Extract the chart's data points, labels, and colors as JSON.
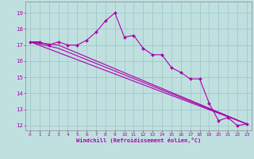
{
  "xlabel": "Windchill (Refroidissement éolien,°C)",
  "bg_color": "#c0e0e0",
  "grid_color": "#a0c8c8",
  "line_color": "#aa00aa",
  "spine_color": "#888888",
  "xlim": [
    -0.5,
    23.5
  ],
  "ylim": [
    11.7,
    19.7
  ],
  "yticks": [
    12,
    13,
    14,
    15,
    16,
    17,
    18,
    19
  ],
  "xticks": [
    0,
    1,
    2,
    3,
    4,
    5,
    6,
    7,
    8,
    9,
    10,
    11,
    12,
    13,
    14,
    15,
    16,
    17,
    18,
    19,
    20,
    21,
    22,
    23
  ],
  "series1_x": [
    0,
    1,
    2,
    3,
    4,
    5,
    6,
    7,
    8,
    9,
    10,
    11,
    12,
    13,
    14,
    15,
    16,
    17,
    18,
    19,
    20,
    21,
    22,
    23
  ],
  "series1_y": [
    17.2,
    17.2,
    17.0,
    17.2,
    17.0,
    17.0,
    17.3,
    17.8,
    18.5,
    19.0,
    17.5,
    17.6,
    16.8,
    16.4,
    16.4,
    15.6,
    15.3,
    14.9,
    14.9,
    13.4,
    12.3,
    12.5,
    12.0,
    12.1
  ],
  "trend1_x": [
    0,
    3,
    23
  ],
  "trend1_y": [
    17.2,
    17.0,
    12.1
  ],
  "trend2_x": [
    0,
    23
  ],
  "trend2_y": [
    17.2,
    12.1
  ],
  "trend3_x": [
    0,
    3,
    23
  ],
  "trend3_y": [
    17.2,
    16.8,
    12.1
  ]
}
